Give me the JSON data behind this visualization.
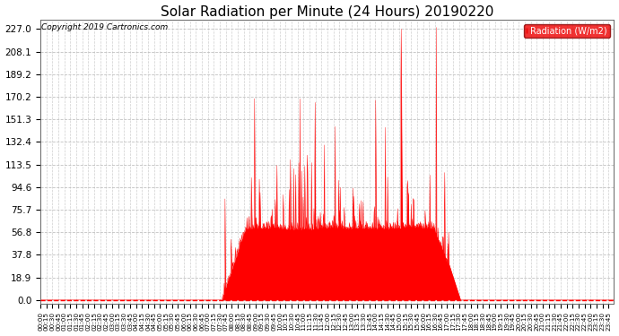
{
  "title": "Solar Radiation per Minute (24 Hours) 20190220",
  "copyright": "Copyright 2019 Cartronics.com",
  "legend_label": "Radiation (W/m2)",
  "ylabel_values": [
    0.0,
    18.9,
    37.8,
    56.8,
    75.7,
    94.6,
    113.5,
    132.4,
    151.3,
    170.2,
    189.2,
    208.1,
    227.0
  ],
  "ymax": 235,
  "ymin": -3,
  "bar_color": "#ff0000",
  "background_color": "#ffffff",
  "grid_color": "#bbbbbb",
  "legend_bg": "#ee0000",
  "legend_text_color": "#ffffff",
  "total_minutes": 1440,
  "sunrise_minute": 455,
  "sunset_minute": 1055,
  "big_spike_minute": 905,
  "big_spike_value": 227.0,
  "title_fontsize": 11,
  "copyright_fontsize": 6.5,
  "ytick_fontsize": 7.5,
  "xtick_fontsize": 5.2
}
